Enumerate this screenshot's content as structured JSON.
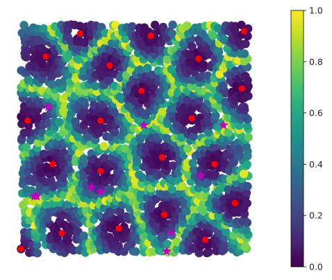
{
  "chart_data": {
    "type": "scatter",
    "title": "",
    "xlabel": "",
    "ylabel": "",
    "axes_visible": false,
    "xlim": [
      0,
      1
    ],
    "ylim": [
      0,
      1
    ],
    "colormap": "viridis",
    "colorbar": {
      "range": [
        0.0,
        1.0
      ],
      "ticks": [
        0.0,
        0.2,
        0.4,
        0.6,
        0.8,
        1.0
      ],
      "tick_labels": [
        "0.0",
        "0.2",
        "0.4",
        "0.6",
        "0.8",
        "1.0"
      ]
    },
    "background_field": {
      "description": "dense grid of circular markers colored by distance-to-nearest-center field (0 near red centers, 1 on boundaries)",
      "marker_color_value_range": [
        0,
        1
      ]
    },
    "series": [
      {
        "marker": "circle",
        "color": "#ff0000",
        "points": [
          {
            "x": 0.26,
            "y": 0.96
          },
          {
            "x": 0.57,
            "y": 0.95
          },
          {
            "x": 0.98,
            "y": 0.97
          },
          {
            "x": 0.11,
            "y": 0.86
          },
          {
            "x": 0.39,
            "y": 0.82
          },
          {
            "x": 0.78,
            "y": 0.85
          },
          {
            "x": 0.53,
            "y": 0.71
          },
          {
            "x": 0.97,
            "y": 0.72
          },
          {
            "x": 0.03,
            "y": 0.58
          },
          {
            "x": 0.35,
            "y": 0.58
          },
          {
            "x": 0.75,
            "y": 0.59
          },
          {
            "x": 0.62,
            "y": 0.42
          },
          {
            "x": 0.14,
            "y": 0.39
          },
          {
            "x": 0.35,
            "y": 0.36
          },
          {
            "x": 0.85,
            "y": 0.39
          },
          {
            "x": 0.94,
            "y": 0.22
          },
          {
            "x": 0.63,
            "y": 0.17
          },
          {
            "x": 0.43,
            "y": 0.11
          },
          {
            "x": 0.18,
            "y": 0.09
          },
          {
            "x": 0.81,
            "y": 0.06
          },
          {
            "x": 0.0,
            "y": 0.02
          }
        ]
      },
      {
        "marker": "star",
        "color": "#bf00bf",
        "points": [
          {
            "x": 0.12,
            "y": 0.64
          },
          {
            "x": 0.54,
            "y": 0.56
          },
          {
            "x": 0.89,
            "y": 0.56
          },
          {
            "x": 0.79,
            "y": 0.34
          },
          {
            "x": 0.31,
            "y": 0.29
          },
          {
            "x": 0.35,
            "y": 0.27
          },
          {
            "x": 0.06,
            "y": 0.25
          },
          {
            "x": 0.07,
            "y": 0.25
          },
          {
            "x": 0.66,
            "y": 0.09
          },
          {
            "x": 0.64,
            "y": 0.01
          }
        ]
      }
    ]
  }
}
